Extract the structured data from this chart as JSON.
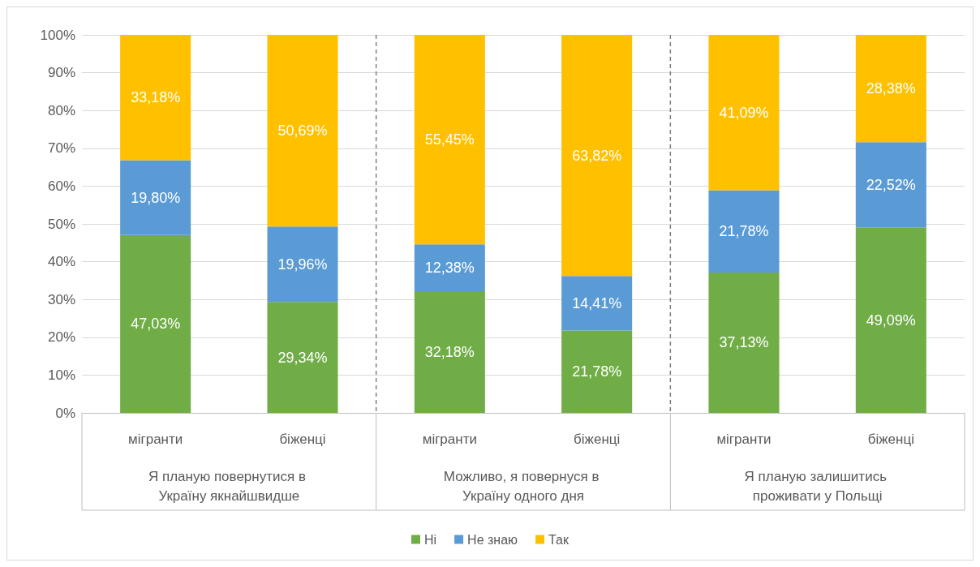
{
  "chart_data": {
    "type": "bar",
    "stacked": true,
    "categories": [
      "мігранти",
      "біженці",
      "мігранти",
      "біженці",
      "мігранти",
      "біженці"
    ],
    "series": [
      {
        "name": "Ні",
        "color": "#70ad47",
        "values": [
          47.03,
          29.34,
          32.18,
          21.78,
          37.13,
          49.09
        ],
        "value_labels": [
          "47,03%",
          "29,34%",
          "32,18%",
          "21,78%",
          "37,13%",
          "49,09%"
        ]
      },
      {
        "name": "Не знаю",
        "color": "#5b9bd5",
        "values": [
          19.8,
          19.96,
          12.38,
          14.41,
          21.78,
          22.52
        ],
        "value_labels": [
          "19,80%",
          "19,96%",
          "12,38%",
          "14,41%",
          "21,78%",
          "22,52%"
        ]
      },
      {
        "name": "Так",
        "color": "#ffc000",
        "values": [
          33.18,
          50.69,
          55.45,
          63.82,
          41.09,
          28.38
        ],
        "value_labels": [
          "33,18%",
          "50,69%",
          "55,45%",
          "63,82%",
          "41,09%",
          "28,38%"
        ]
      }
    ],
    "annotations": [
      "Я планую повернутися в Україну якнайшвидше",
      "Можливо, я повернуся в Україну одного дня",
      "Я планую залишитись проживати у Польщі"
    ],
    "ylim": [
      0,
      100
    ],
    "yticks": [
      {
        "value": 0,
        "label": "0%"
      },
      {
        "value": 10,
        "label": "10%"
      },
      {
        "value": 20,
        "label": "20%"
      },
      {
        "value": 30,
        "label": "30%"
      },
      {
        "value": 40,
        "label": "40%"
      },
      {
        "value": 50,
        "label": "50%"
      },
      {
        "value": 60,
        "label": "60%"
      },
      {
        "value": 70,
        "label": "70%"
      },
      {
        "value": 80,
        "label": "80%"
      },
      {
        "value": 90,
        "label": "90%"
      },
      {
        "value": 100,
        "label": "100%"
      }
    ],
    "grid": "y",
    "legend": "bottom"
  }
}
